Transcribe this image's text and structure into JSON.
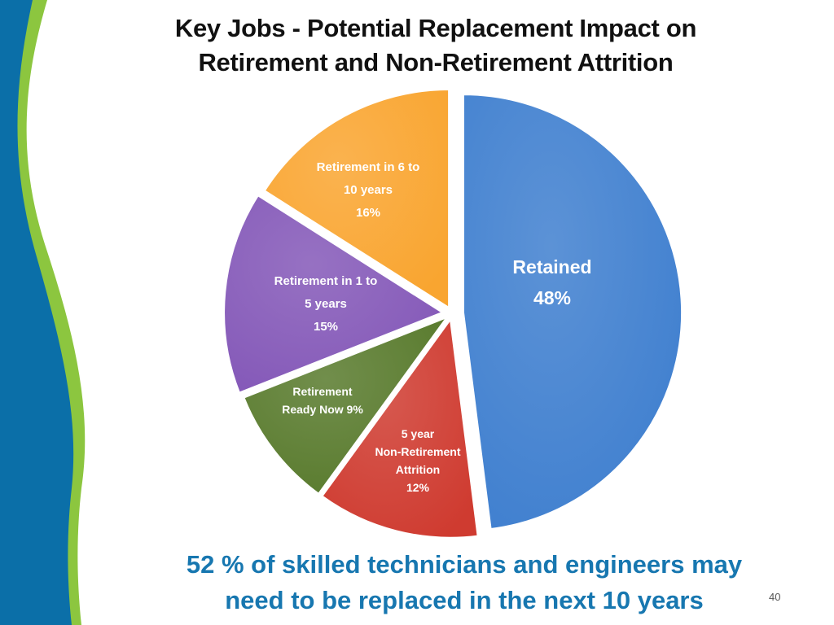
{
  "slide": {
    "title_line1": "Key Jobs - Potential Replacement Impact on",
    "title_line2": "Retirement and  Non-Retirement Attrition",
    "footer_line1": "52 % of skilled technicians and engineers may",
    "footer_line2": "need to be replaced in the next 10 years",
    "page_number": "40",
    "accent_colors": {
      "left_band_blue": "#0b6fa8",
      "left_band_green": "#8cc63f",
      "footer_text": "#1777b0"
    }
  },
  "chart_data": {
    "type": "pie",
    "title": "Key Jobs - Potential Replacement Impact on Retirement and  Non-Retirement Attrition",
    "exploded": true,
    "slices": [
      {
        "key": "retained",
        "label_lines": [
          "Retained",
          "48%"
        ],
        "value": 48,
        "color": "#3f7fcf",
        "label_color": "#ffffff"
      },
      {
        "key": "non_retirement",
        "label_lines": [
          "5 year",
          "Non-Retirement",
          "Attrition",
          "12%"
        ],
        "value": 12,
        "color": "#cf3b30",
        "label_color": "#ffffff"
      },
      {
        "key": "ready_now",
        "label_lines": [
          "Retirement",
          "Ready Now  9%"
        ],
        "value": 9,
        "color": "#587a2c",
        "label_color": "#ffffff"
      },
      {
        "key": "one_to_five",
        "label_lines": [
          "Retirement in 1 to",
          "5 years",
          "15%"
        ],
        "value": 15,
        "color": "#8458b8",
        "label_color": "#ffffff"
      },
      {
        "key": "six_to_ten",
        "label_lines": [
          "Retirement in 6 to",
          "10 years",
          "16%"
        ],
        "value": 16,
        "color": "#f9a530",
        "label_color": "#ffffff"
      }
    ]
  }
}
